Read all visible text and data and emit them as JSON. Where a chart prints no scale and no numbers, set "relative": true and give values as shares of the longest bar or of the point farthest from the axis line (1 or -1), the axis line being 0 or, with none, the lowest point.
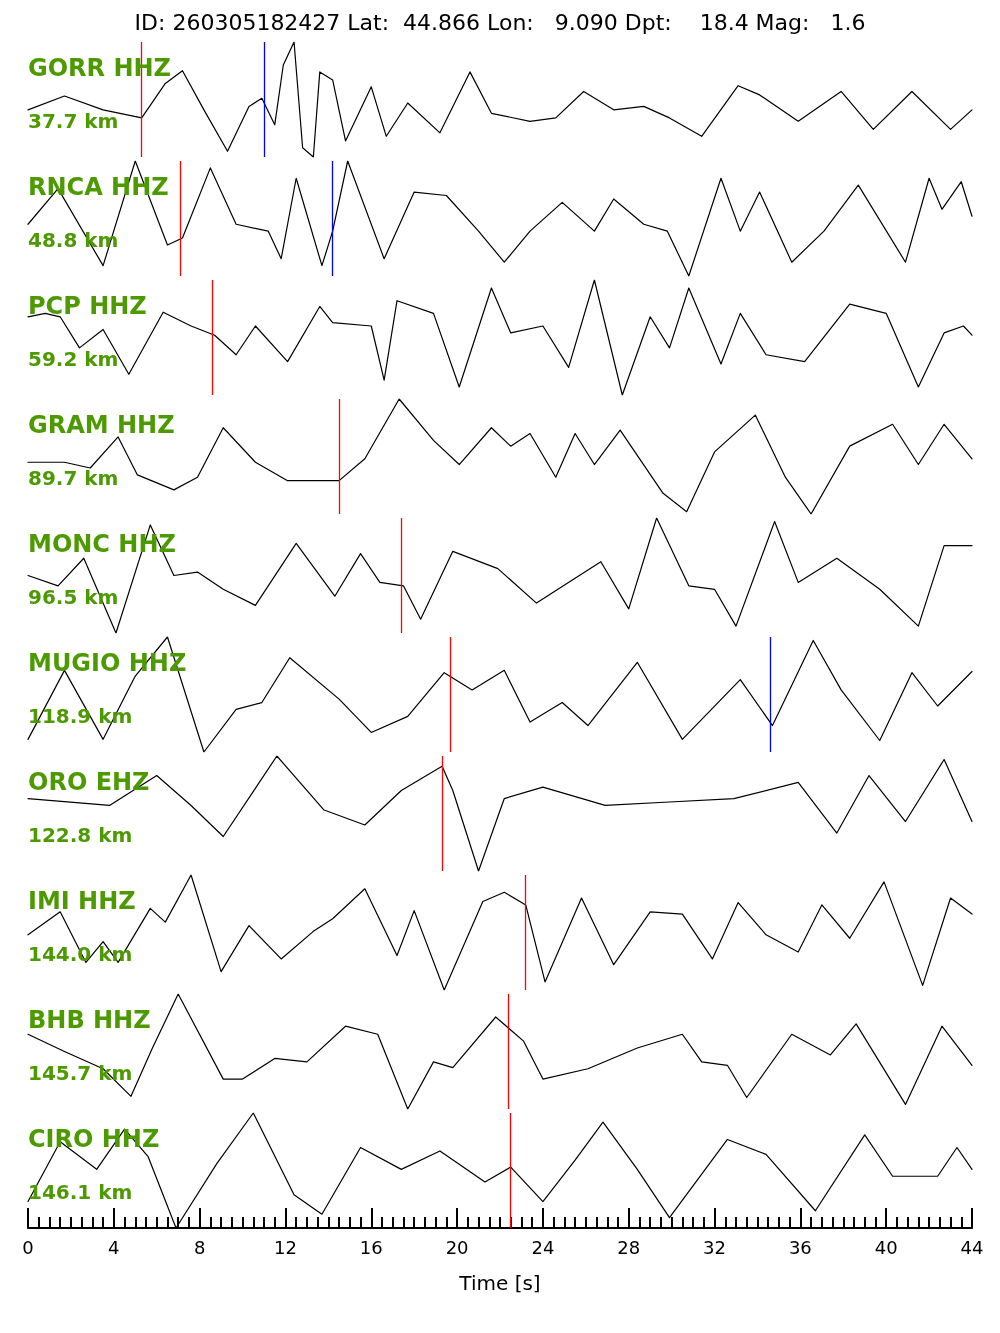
{
  "chart_data": [
    {
      "type": "line",
      "relative": true,
      "title": "ID: 260305182427 Lat:  44.866 Lon:   9.090 Dpt:    18.4 Mag:   1.6",
      "annotations": [
        "GORR HHZ",
        "37.7 km"
      ],
      "xlim": [
        0,
        44
      ],
      "tick_labels": false,
      "x": [
        0,
        1.7,
        3.5,
        5.3,
        6.4,
        7.2,
        8.2,
        9.3,
        10.3,
        10.9,
        11.5,
        11.9,
        12.4,
        12.8,
        13.3,
        13.6,
        14.2,
        14.8,
        16.0,
        16.7,
        17.7,
        19.2,
        20.6,
        21.6,
        23.4,
        24.6,
        25.9,
        27.3,
        28.7,
        29.9,
        31.4,
        33.1,
        34.1,
        35.9,
        37.9,
        39.4,
        41.2,
        43.0,
        44
      ],
      "series": [
        {
          "color": "#000000",
          "values": [
            0.41,
            0.53,
            0.41,
            0.34,
            0.64,
            0.75,
            0.41,
            0.05,
            0.44,
            0.51,
            0.28,
            0.8,
            1,
            0.08,
            0,
            0.74,
            0.67,
            0.14,
            0.61,
            0.18,
            0.47,
            0.21,
            0.74,
            0.38,
            0.31,
            0.34,
            0.57,
            0.41,
            0.44,
            0.34,
            0.18,
            0.62,
            0.54,
            0.31,
            0.57,
            0.24,
            0.57,
            0.24,
            0.41
          ]
        }
      ],
      "ref_lines": [
        {
          "axis": "x",
          "value": 5.3,
          "color": "#ff0000"
        },
        {
          "axis": "x",
          "value": 11.0,
          "color": "#0000ff"
        }
      ]
    },
    {
      "type": "line",
      "relative": true,
      "annotations": [
        "RNCA HHZ",
        "48.8 km"
      ],
      "xlim": [
        0,
        44
      ],
      "tick_labels": false,
      "x": [
        0,
        1.4,
        3.5,
        5.0,
        6.5,
        7.2,
        8.5,
        9.7,
        11.2,
        11.8,
        12.5,
        13.7,
        14.2,
        14.9,
        16.6,
        18.0,
        19.5,
        21.0,
        22.2,
        23.4,
        24.9,
        26.4,
        27.3,
        28.7,
        29.8,
        30.8,
        32.3,
        33.2,
        34.1,
        35.6,
        37.1,
        38.7,
        40.9,
        42.0,
        42.6,
        43.5,
        44
      ],
      "series": [
        {
          "color": "#000000",
          "values": [
            0.45,
            0.76,
            0.09,
            1,
            0.27,
            0.33,
            0.94,
            0.45,
            0.39,
            0.15,
            0.85,
            0.09,
            0.39,
            1,
            0.15,
            0.73,
            0.7,
            0.39,
            0.12,
            0.39,
            0.64,
            0.39,
            0.67,
            0.45,
            0.39,
            0,
            0.85,
            0.39,
            0.73,
            0.12,
            0.39,
            0.79,
            0.12,
            0.85,
            0.58,
            0.82,
            0.52
          ]
        }
      ],
      "ref_lines": [
        {
          "axis": "x",
          "value": 7.1,
          "color": "#ff0000"
        },
        {
          "axis": "x",
          "value": 14.2,
          "color": "#0000ff"
        }
      ]
    },
    {
      "type": "line",
      "relative": true,
      "annotations": [
        "PCP HHZ",
        "59.2 km"
      ],
      "xlim": [
        0,
        44
      ],
      "tick_labels": false,
      "x": [
        0,
        0.8,
        1.5,
        2.4,
        3.5,
        4.7,
        6.3,
        7.6,
        8.7,
        9.7,
        10.6,
        12.1,
        13.6,
        14.2,
        16.0,
        16.6,
        17.2,
        18.9,
        20.1,
        21.6,
        22.5,
        24.0,
        25.2,
        26.4,
        27.7,
        29.0,
        29.9,
        30.8,
        32.3,
        33.2,
        34.4,
        36.2,
        38.3,
        40.0,
        41.5,
        42.7,
        43.6,
        44
      ],
      "series": [
        {
          "color": "#000000",
          "values": [
            0.68,
            0.71,
            0.68,
            0.41,
            0.57,
            0.18,
            0.72,
            0.6,
            0.52,
            0.35,
            0.6,
            0.29,
            0.77,
            0.63,
            0.6,
            0.13,
            0.82,
            0.71,
            0.07,
            0.93,
            0.54,
            0.6,
            0.24,
            1,
            0,
            0.68,
            0.41,
            0.93,
            0.27,
            0.71,
            0.35,
            0.29,
            0.79,
            0.71,
            0.07,
            0.54,
            0.6,
            0.52
          ]
        }
      ],
      "ref_lines": [
        {
          "axis": "x",
          "value": 8.6,
          "color": "#ff0000"
        }
      ]
    },
    {
      "type": "line",
      "relative": true,
      "annotations": [
        "GRAM HHZ",
        "89.7 km"
      ],
      "xlim": [
        0,
        44
      ],
      "tick_labels": false,
      "x": [
        0,
        1.7,
        2.9,
        4.2,
        5.1,
        6.8,
        7.9,
        9.1,
        10.6,
        12.1,
        14.5,
        15.7,
        17.3,
        18.9,
        20.1,
        21.6,
        22.5,
        23.4,
        24.6,
        25.5,
        26.4,
        27.6,
        29.6,
        30.7,
        32.0,
        33.9,
        35.3,
        36.5,
        38.3,
        40.3,
        41.5,
        42.7,
        44
      ],
      "series": [
        {
          "color": "#000000",
          "values": [
            0.45,
            0.45,
            0.4,
            0.67,
            0.34,
            0.21,
            0.32,
            0.75,
            0.45,
            0.29,
            0.29,
            0.48,
            1,
            0.64,
            0.43,
            0.75,
            0.59,
            0.7,
            0.32,
            0.7,
            0.43,
            0.73,
            0.18,
            0.02,
            0.54,
            0.86,
            0.32,
            0,
            0.59,
            0.78,
            0.43,
            0.78,
            0.48
          ]
        }
      ],
      "ref_lines": [
        {
          "axis": "x",
          "value": 14.5,
          "color": "#ff0000"
        }
      ]
    },
    {
      "type": "line",
      "relative": true,
      "annotations": [
        "MONC HHZ",
        "96.5 km"
      ],
      "xlim": [
        0,
        44
      ],
      "tick_labels": false,
      "x": [
        0,
        1.4,
        2.6,
        4.1,
        5.7,
        6.8,
        7.9,
        9.1,
        10.6,
        12.5,
        14.3,
        15.5,
        16.4,
        17.5,
        18.3,
        19.8,
        21.9,
        23.7,
        26.7,
        28.0,
        29.3,
        30.8,
        32.0,
        33.0,
        34.8,
        35.9,
        37.7,
        39.7,
        41.5,
        42.7,
        44
      ],
      "series": [
        {
          "color": "#000000",
          "values": [
            0.5,
            0.41,
            0.65,
            0,
            0.94,
            0.5,
            0.53,
            0.38,
            0.24,
            0.78,
            0.32,
            0.69,
            0.44,
            0.41,
            0.12,
            0.71,
            0.56,
            0.26,
            0.62,
            0.21,
            1,
            0.41,
            0.38,
            0.06,
            0.97,
            0.44,
            0.65,
            0.38,
            0.06,
            0.76,
            0.76
          ]
        }
      ],
      "ref_lines": [
        {
          "axis": "x",
          "value": 17.4,
          "color": "#ff0000"
        }
      ]
    },
    {
      "type": "line",
      "relative": true,
      "annotations": [
        "MUGIO HHZ",
        "118.9 km"
      ],
      "xlim": [
        0,
        44
      ],
      "tick_labels": false,
      "x": [
        0,
        1.7,
        3.5,
        5.0,
        6.5,
        8.2,
        9.7,
        10.9,
        12.2,
        14.5,
        16.0,
        17.7,
        19.4,
        20.7,
        22.2,
        23.4,
        24.9,
        26.1,
        28.4,
        30.5,
        33.2,
        34.7,
        36.6,
        37.9,
        39.7,
        41.2,
        42.4,
        44
      ],
      "series": [
        {
          "color": "#000000",
          "values": [
            0.11,
            0.71,
            0.11,
            0.66,
            1,
            0,
            0.37,
            0.43,
            0.82,
            0.46,
            0.17,
            0.31,
            0.69,
            0.54,
            0.71,
            0.26,
            0.43,
            0.23,
            0.78,
            0.11,
            0.63,
            0.23,
            0.97,
            0.54,
            0.1,
            0.69,
            0.4,
            0.7
          ]
        }
      ],
      "ref_lines": [
        {
          "axis": "x",
          "value": 19.7,
          "color": "#ff0000"
        },
        {
          "axis": "x",
          "value": 34.6,
          "color": "#0000ff"
        }
      ]
    },
    {
      "type": "line",
      "relative": true,
      "annotations": [
        "ORO EHZ",
        "122.8 km"
      ],
      "xlim": [
        0,
        44
      ],
      "tick_labels": false,
      "x": [
        0,
        3.8,
        6.0,
        7.6,
        9.1,
        11.6,
        13.8,
        15.7,
        17.4,
        19.3,
        19.8,
        21.0,
        22.2,
        24.0,
        26.9,
        29.9,
        32.9,
        35.9,
        37.7,
        39.2,
        40.9,
        42.7,
        44
      ],
      "series": [
        {
          "color": "#000000",
          "values": [
            0.63,
            0.57,
            0.83,
            0.57,
            0.3,
            1,
            0.53,
            0.4,
            0.7,
            0.91,
            0.7,
            0,
            0.63,
            0.73,
            0.57,
            0.6,
            0.63,
            0.77,
            0.33,
            0.83,
            0.43,
            0.97,
            0.43
          ]
        }
      ],
      "ref_lines": [
        {
          "axis": "x",
          "value": 19.3,
          "color": "#ff0000"
        }
      ]
    },
    {
      "type": "line",
      "relative": true,
      "annotations": [
        "IMI HHZ",
        "144.0 km"
      ],
      "xlim": [
        0,
        44
      ],
      "tick_labels": false,
      "x": [
        0,
        1.5,
        2.7,
        3.5,
        4.2,
        5.7,
        6.4,
        7.6,
        9.0,
        10.3,
        11.8,
        13.3,
        14.2,
        15.7,
        17.2,
        18.0,
        19.4,
        21.2,
        22.2,
        23.2,
        24.1,
        25.8,
        27.3,
        29.0,
        30.5,
        31.9,
        33.1,
        34.4,
        35.9,
        37.0,
        38.3,
        39.9,
        41.7,
        43.0,
        44
      ],
      "series": [
        {
          "color": "#000000",
          "values": [
            0.48,
            0.68,
            0.24,
            0.42,
            0.24,
            0.71,
            0.59,
            1,
            0.16,
            0.56,
            0.27,
            0.51,
            0.62,
            0.88,
            0.3,
            0.69,
            0,
            0.77,
            0.85,
            0.74,
            0.07,
            0.8,
            0.22,
            0.68,
            0.66,
            0.27,
            0.76,
            0.48,
            0.33,
            0.74,
            0.45,
            0.94,
            0.04,
            0.8,
            0.66
          ]
        }
      ],
      "ref_lines": [
        {
          "axis": "x",
          "value": 23.2,
          "color": "#ff0000"
        }
      ]
    },
    {
      "type": "line",
      "relative": true,
      "annotations": [
        "BHB HHZ",
        "145.7 km"
      ],
      "xlim": [
        0,
        44
      ],
      "tick_labels": false,
      "x": [
        0,
        1.7,
        3.5,
        4.8,
        5.8,
        7.0,
        9.1,
        10.0,
        11.5,
        13.0,
        14.8,
        16.3,
        17.7,
        18.9,
        19.8,
        21.8,
        23.1,
        24.0,
        26.1,
        28.4,
        30.5,
        31.4,
        32.6,
        33.5,
        35.6,
        37.4,
        38.6,
        40.9,
        42.6,
        44
      ],
      "series": [
        {
          "color": "#000000",
          "values": [
            0.65,
            0.5,
            0.35,
            0.11,
            0.53,
            1,
            0.26,
            0.26,
            0.44,
            0.41,
            0.72,
            0.65,
            0,
            0.41,
            0.36,
            0.8,
            0.59,
            0.26,
            0.35,
            0.53,
            0.65,
            0.41,
            0.38,
            0.1,
            0.65,
            0.47,
            0.74,
            0.04,
            0.72,
            0.38
          ]
        }
      ],
      "ref_lines": [
        {
          "axis": "x",
          "value": 22.4,
          "color": "#ff0000"
        }
      ]
    },
    {
      "type": "line",
      "relative": true,
      "annotations": [
        "CIRO HHZ",
        "146.1 km"
      ],
      "xlabel": "Time [s]",
      "xlim": [
        0,
        44
      ],
      "tick_labels": "x",
      "xticks": [
        0,
        {
          "value": 0.5,
          "label": null
        },
        {
          "value": 1,
          "label": null
        },
        {
          "value": 1.5,
          "label": null
        },
        {
          "value": 2,
          "label": null
        },
        {
          "value": 2.5,
          "label": null
        },
        {
          "value": 3,
          "label": null
        },
        {
          "value": 3.5,
          "label": null
        },
        4,
        {
          "value": 4.5,
          "label": null
        },
        {
          "value": 5,
          "label": null
        },
        {
          "value": 5.5,
          "label": null
        },
        {
          "value": 6,
          "label": null
        },
        {
          "value": 6.5,
          "label": null
        },
        {
          "value": 7,
          "label": null
        },
        {
          "value": 7.5,
          "label": null
        },
        8,
        {
          "value": 8.5,
          "label": null
        },
        {
          "value": 9,
          "label": null
        },
        {
          "value": 9.5,
          "label": null
        },
        {
          "value": 10,
          "label": null
        },
        {
          "value": 10.5,
          "label": null
        },
        {
          "value": 11,
          "label": null
        },
        {
          "value": 11.5,
          "label": null
        },
        12,
        {
          "value": 12.5,
          "label": null
        },
        {
          "value": 13,
          "label": null
        },
        {
          "value": 13.5,
          "label": null
        },
        {
          "value": 14,
          "label": null
        },
        {
          "value": 14.5,
          "label": null
        },
        {
          "value": 15,
          "label": null
        },
        {
          "value": 15.5,
          "label": null
        },
        16,
        {
          "value": 16.5,
          "label": null
        },
        {
          "value": 17,
          "label": null
        },
        {
          "value": 17.5,
          "label": null
        },
        {
          "value": 18,
          "label": null
        },
        {
          "value": 18.5,
          "label": null
        },
        {
          "value": 19,
          "label": null
        },
        {
          "value": 19.5,
          "label": null
        },
        20,
        {
          "value": 20.5,
          "label": null
        },
        {
          "value": 21,
          "label": null
        },
        {
          "value": 21.5,
          "label": null
        },
        {
          "value": 22,
          "label": null
        },
        {
          "value": 22.5,
          "label": null
        },
        {
          "value": 23,
          "label": null
        },
        {
          "value": 23.5,
          "label": null
        },
        24,
        {
          "value": 24.5,
          "label": null
        },
        {
          "value": 25,
          "label": null
        },
        {
          "value": 25.5,
          "label": null
        },
        {
          "value": 26,
          "label": null
        },
        {
          "value": 26.5,
          "label": null
        },
        {
          "value": 27,
          "label": null
        },
        {
          "value": 27.5,
          "label": null
        },
        28,
        {
          "value": 28.5,
          "label": null
        },
        {
          "value": 29,
          "label": null
        },
        {
          "value": 29.5,
          "label": null
        },
        {
          "value": 30,
          "label": null
        },
        {
          "value": 30.5,
          "label": null
        },
        {
          "value": 31,
          "label": null
        },
        {
          "value": 31.5,
          "label": null
        },
        32,
        {
          "value": 32.5,
          "label": null
        },
        {
          "value": 33,
          "label": null
        },
        {
          "value": 33.5,
          "label": null
        },
        {
          "value": 34,
          "label": null
        },
        {
          "value": 34.5,
          "label": null
        },
        {
          "value": 35,
          "label": null
        },
        {
          "value": 35.5,
          "label": null
        },
        36,
        {
          "value": 36.5,
          "label": null
        },
        {
          "value": 37,
          "label": null
        },
        {
          "value": 37.5,
          "label": null
        },
        {
          "value": 38,
          "label": null
        },
        {
          "value": 38.5,
          "label": null
        },
        {
          "value": 39,
          "label": null
        },
        {
          "value": 39.5,
          "label": null
        },
        40,
        {
          "value": 40.5,
          "label": null
        },
        {
          "value": 41,
          "label": null
        },
        {
          "value": 41.5,
          "label": null
        },
        {
          "value": 42,
          "label": null
        },
        {
          "value": 42.5,
          "label": null
        },
        {
          "value": 43,
          "label": null
        },
        {
          "value": 43.5,
          "label": null
        },
        44
      ],
      "x": [
        0,
        1.5,
        3.2,
        4.5,
        5.6,
        6.9,
        8.8,
        10.5,
        12.4,
        13.7,
        15.5,
        17.4,
        19.2,
        21.3,
        22.5,
        24.0,
        25.5,
        26.8,
        28.4,
        29.9,
        32.6,
        34.4,
        36.7,
        39.0,
        40.3,
        42.4,
        43.3,
        44
      ],
      "series": [
        {
          "color": "#000000",
          "values": [
            0.23,
            0.75,
            0.51,
            0.86,
            0.62,
            0,
            0.56,
            1,
            0.29,
            0.12,
            0.7,
            0.51,
            0.67,
            0.4,
            0.53,
            0.23,
            0.59,
            0.92,
            0.51,
            0.09,
            0.77,
            0.64,
            0.15,
            0.81,
            0.45,
            0.45,
            0.7,
            0.51
          ]
        }
      ],
      "ref_lines": [
        {
          "axis": "x",
          "value": 22.5,
          "color": "#ff0000"
        }
      ]
    }
  ]
}
